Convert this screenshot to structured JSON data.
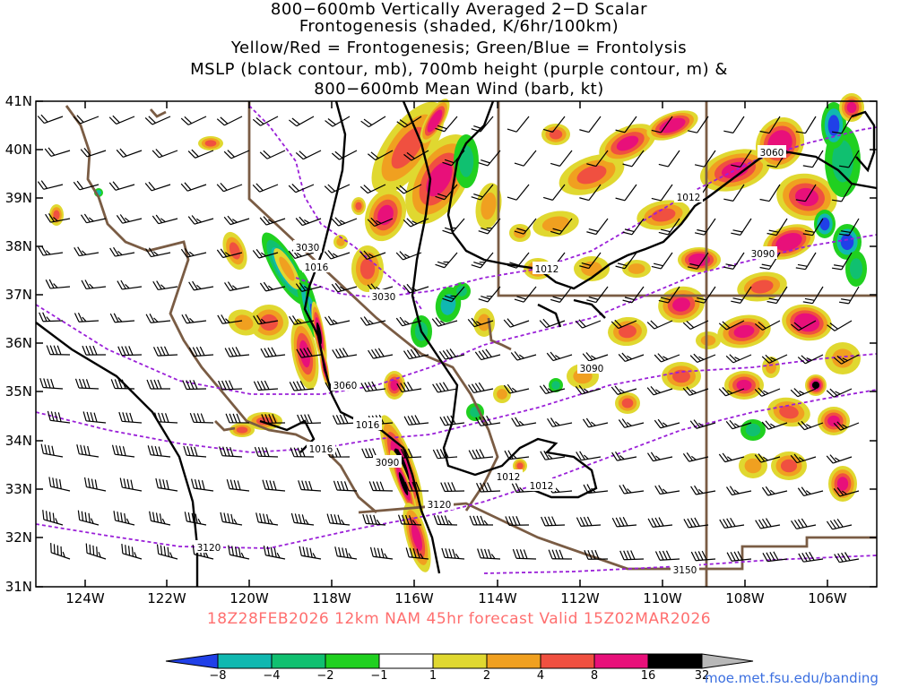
{
  "title": {
    "line1": "800−600mb Vertically Averaged 2−D Scalar",
    "line2": "Frontogenesis (shaded, K/6hr/100km)",
    "line3": "Yellow/Red = Frontogenesis;  Green/Blue = Frontolysis",
    "line4": "MSLP (black contour, mb), 700mb height (purple contour, m) &",
    "line5": "800−600mb Mean Wind (barb, kt)"
  },
  "lat_labels": [
    "41N",
    "40N",
    "39N",
    "38N",
    "37N",
    "36N",
    "35N",
    "34N",
    "33N",
    "32N",
    "31N"
  ],
  "lon_labels": [
    "124W",
    "122W",
    "120W",
    "118W",
    "116W",
    "114W",
    "112W",
    "110W",
    "108W",
    "106W"
  ],
  "valid": "18Z28FEB2026 12km NAM 45hr forecast Valid 15Z02MAR2026",
  "colorbar": {
    "ticks": [
      "−8",
      "−4",
      "−2",
      "−1",
      "1",
      "2",
      "4",
      "8",
      "16",
      "32"
    ],
    "colors": [
      "#2040e8",
      "#10b8b0",
      "#10c070",
      "#20d020",
      "#ffffff",
      "#e0d830",
      "#f0a020",
      "#f05040",
      "#e8107a",
      "#000000",
      "#b8b8b8"
    ]
  },
  "credit": "moe.met.fsu.edu/banding",
  "contour_labels": {
    "mslp": [
      "1016",
      "1016",
      "1016",
      "1012",
      "1012",
      "1012",
      "1012"
    ],
    "height": [
      "3030",
      "3030",
      "3060",
      "3060",
      "3090",
      "3090",
      "3090",
      "3120",
      "3120",
      "3150"
    ]
  },
  "colors": {
    "border": "#7a5c44",
    "mslp": "#000000",
    "height": "#9a20d8",
    "valid_text": "#ff6f6f",
    "credit": "#3b6fe0"
  }
}
